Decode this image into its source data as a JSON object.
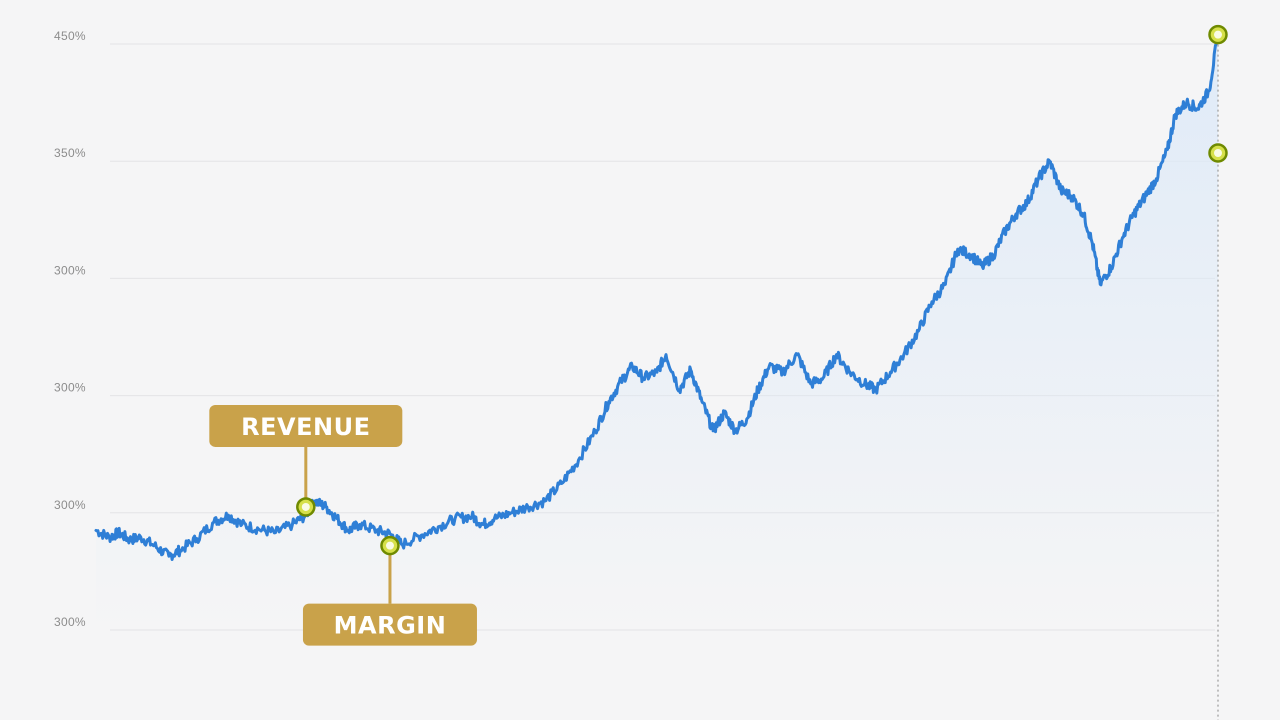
{
  "chart_data": {
    "type": "area",
    "title": "",
    "xlabel": "",
    "ylabel": "",
    "y_tick_labels": [
      "300%",
      "300%",
      "300%",
      "300%",
      "350%",
      "450%"
    ],
    "y_tick_values": [
      0,
      1,
      2,
      3,
      4,
      5
    ],
    "ylim": [
      0,
      5.15
    ],
    "x_range": [
      0,
      1
    ],
    "grid": true,
    "legend": "none",
    "colors": {
      "line": "#2f7fd6",
      "fill": "#dce9f8",
      "marker_fill": "#d6e04a",
      "marker_stroke": "#6f8a00",
      "callout_bg": "#c9a24a",
      "grid": "#e4e4e6",
      "background": "#f5f5f6"
    },
    "series": [
      {
        "points": [
          [
            0.0,
            0.85
          ],
          [
            0.012,
            0.79
          ],
          [
            0.02,
            0.83
          ],
          [
            0.03,
            0.77
          ],
          [
            0.04,
            0.79
          ],
          [
            0.052,
            0.72
          ],
          [
            0.065,
            0.63
          ],
          [
            0.075,
            0.68
          ],
          [
            0.09,
            0.78
          ],
          [
            0.105,
            0.92
          ],
          [
            0.118,
            0.98
          ],
          [
            0.13,
            0.9
          ],
          [
            0.145,
            0.86
          ],
          [
            0.16,
            0.83
          ],
          [
            0.175,
            0.9
          ],
          [
            0.187,
            0.98
          ],
          [
            0.195,
            1.1
          ],
          [
            0.205,
            1.05
          ],
          [
            0.215,
            0.95
          ],
          [
            0.225,
            0.85
          ],
          [
            0.235,
            0.9
          ],
          [
            0.25,
            0.85
          ],
          [
            0.262,
            0.82
          ],
          [
            0.273,
            0.73
          ],
          [
            0.29,
            0.81
          ],
          [
            0.305,
            0.88
          ],
          [
            0.32,
            0.95
          ],
          [
            0.335,
            0.97
          ],
          [
            0.345,
            0.9
          ],
          [
            0.355,
            0.95
          ],
          [
            0.37,
            1.0
          ],
          [
            0.385,
            1.05
          ],
          [
            0.4,
            1.1
          ],
          [
            0.415,
            1.25
          ],
          [
            0.43,
            1.45
          ],
          [
            0.445,
            1.7
          ],
          [
            0.457,
            1.95
          ],
          [
            0.468,
            2.12
          ],
          [
            0.478,
            2.25
          ],
          [
            0.488,
            2.15
          ],
          [
            0.5,
            2.2
          ],
          [
            0.508,
            2.35
          ],
          [
            0.52,
            2.05
          ],
          [
            0.53,
            2.22
          ],
          [
            0.54,
            1.95
          ],
          [
            0.55,
            1.7
          ],
          [
            0.56,
            1.85
          ],
          [
            0.57,
            1.7
          ],
          [
            0.58,
            1.8
          ],
          [
            0.59,
            2.05
          ],
          [
            0.6,
            2.25
          ],
          [
            0.612,
            2.2
          ],
          [
            0.625,
            2.35
          ],
          [
            0.637,
            2.1
          ],
          [
            0.648,
            2.15
          ],
          [
            0.66,
            2.35
          ],
          [
            0.672,
            2.2
          ],
          [
            0.685,
            2.1
          ],
          [
            0.695,
            2.05
          ],
          [
            0.708,
            2.2
          ],
          [
            0.72,
            2.35
          ],
          [
            0.733,
            2.55
          ],
          [
            0.745,
            2.8
          ],
          [
            0.757,
            2.95
          ],
          [
            0.768,
            3.25
          ],
          [
            0.78,
            3.2
          ],
          [
            0.79,
            3.1
          ],
          [
            0.8,
            3.2
          ],
          [
            0.81,
            3.4
          ],
          [
            0.82,
            3.55
          ],
          [
            0.83,
            3.65
          ],
          [
            0.84,
            3.85
          ],
          [
            0.85,
            4.0
          ],
          [
            0.86,
            3.75
          ],
          [
            0.87,
            3.7
          ],
          [
            0.88,
            3.55
          ],
          [
            0.888,
            3.3
          ],
          [
            0.895,
            2.95
          ],
          [
            0.905,
            3.1
          ],
          [
            0.915,
            3.35
          ],
          [
            0.925,
            3.55
          ],
          [
            0.935,
            3.7
          ],
          [
            0.945,
            3.85
          ],
          [
            0.955,
            4.1
          ],
          [
            0.962,
            4.4
          ],
          [
            0.972,
            4.5
          ],
          [
            0.982,
            4.45
          ],
          [
            0.992,
            4.6
          ],
          [
            1.0,
            5.08
          ]
        ]
      }
    ],
    "markers": [
      {
        "x": 0.187,
        "y": 1.05
      },
      {
        "x": 0.262,
        "y": 0.72
      },
      {
        "x": 1.0,
        "y": 5.08
      },
      {
        "x": 1.0,
        "y": 4.07
      }
    ],
    "annotations": [
      {
        "text": "REVENUE",
        "marker": 0,
        "side": "above"
      },
      {
        "text": "MARGIN",
        "marker": 1,
        "side": "below"
      }
    ],
    "reference_line": {
      "x": 1.0,
      "style": "dotted"
    }
  }
}
